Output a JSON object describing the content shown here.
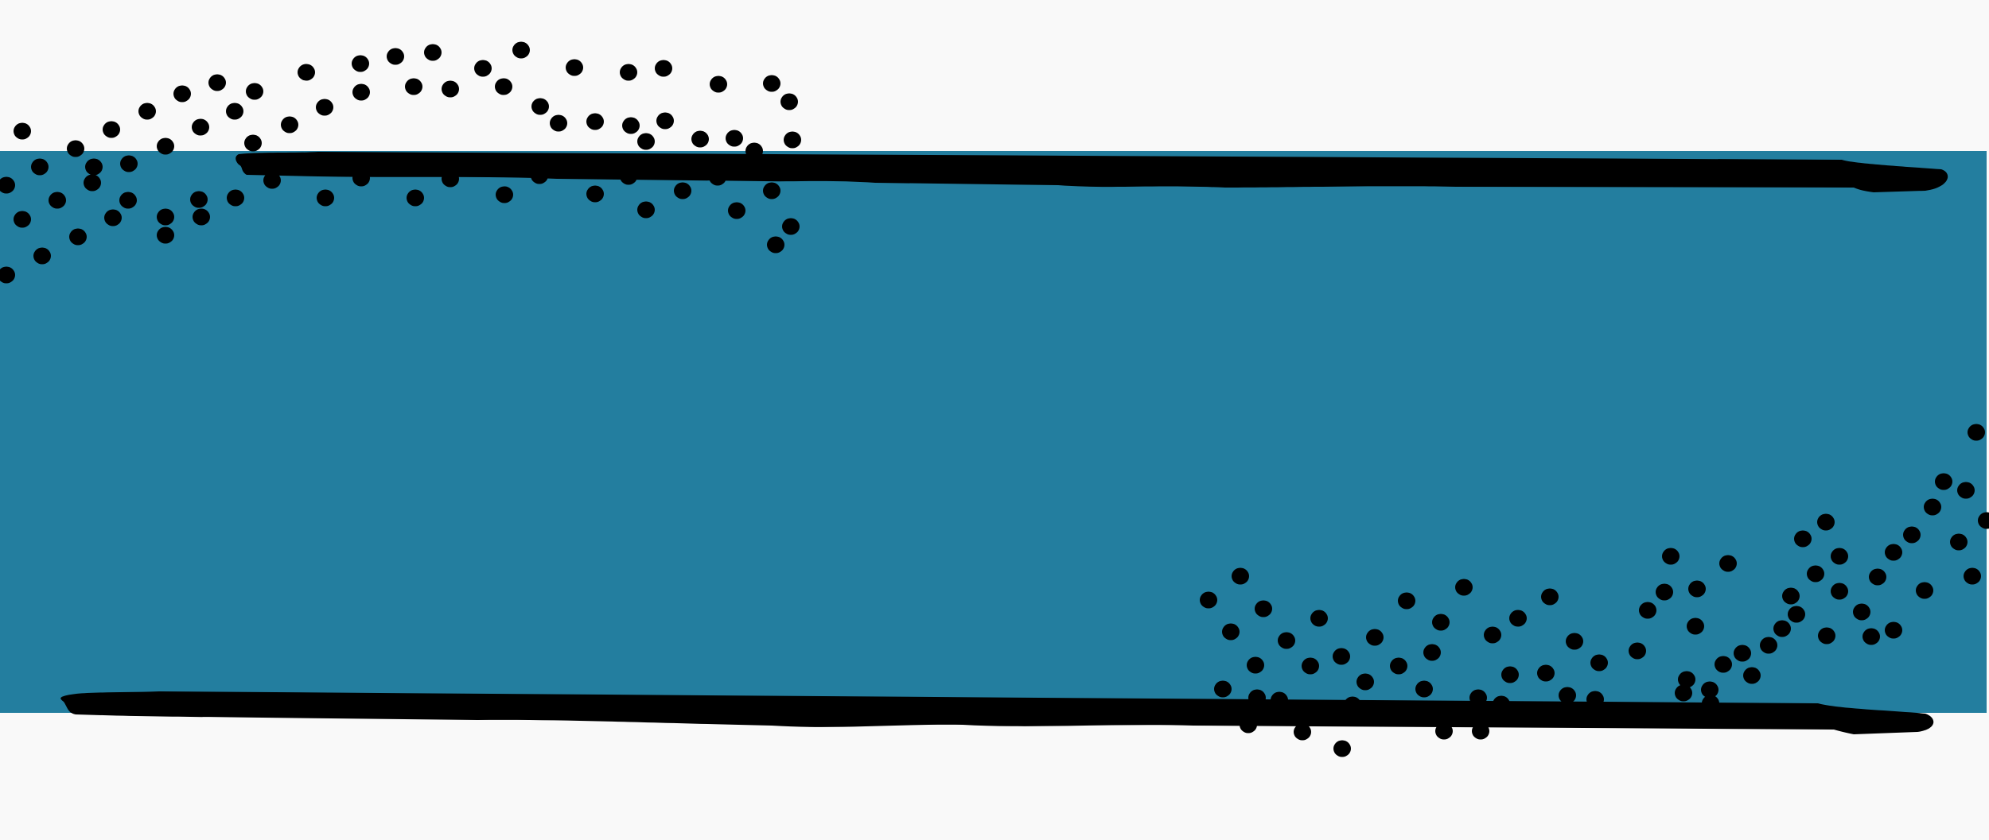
{
  "colors": {
    "page_background": "#f9f9f9",
    "band_fill": "#237e9f",
    "ink": "#000000"
  },
  "graphic": {
    "band": {
      "name": "teal-banner-band"
    },
    "strokes": [
      "top-brush-stroke",
      "bottom-brush-stroke"
    ],
    "dot_patterns": [
      "top-left-dot-wave",
      "bottom-right-dot-wave"
    ]
  }
}
